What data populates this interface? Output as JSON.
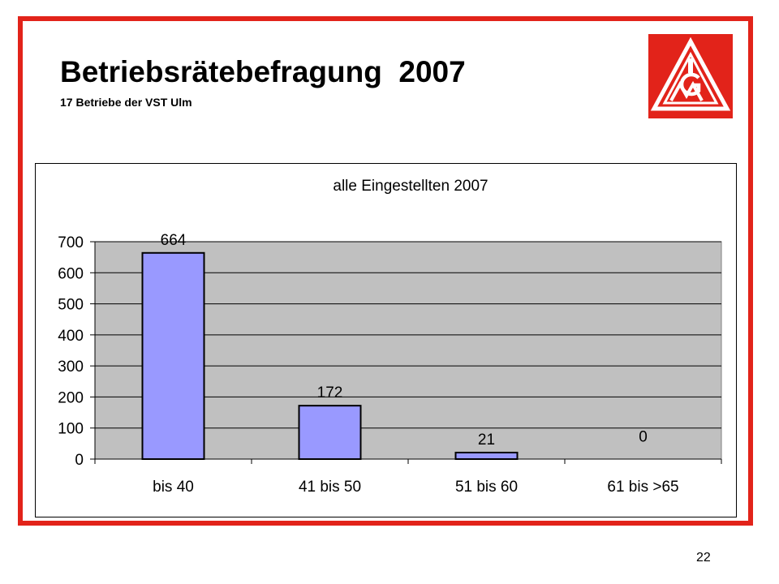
{
  "slide": {
    "title": "Betriebsrätebefragung  2007",
    "subtitle": "17 Betriebe der VST Ulm",
    "page_number": "22",
    "logo_text": "IGM"
  },
  "colors": {
    "frame": "#e2231a",
    "logo_bg": "#e2231a",
    "plot_bg": "#c0c0c0",
    "bar_fill": "#9999ff",
    "bar_stroke": "#000000"
  },
  "chart_data": {
    "type": "bar",
    "title": "alle Eingestellten 2007",
    "categories": [
      "bis 40",
      "41 bis 50",
      "51 bis 60",
      "61 bis >65"
    ],
    "values": [
      664,
      172,
      21,
      0
    ],
    "data_labels": [
      "664",
      "172",
      "21",
      "0"
    ],
    "xlabel": "",
    "ylabel": "",
    "ylim": [
      0,
      700
    ],
    "yticks": [
      0,
      100,
      200,
      300,
      400,
      500,
      600,
      700
    ],
    "grid": true,
    "legend": "none"
  }
}
